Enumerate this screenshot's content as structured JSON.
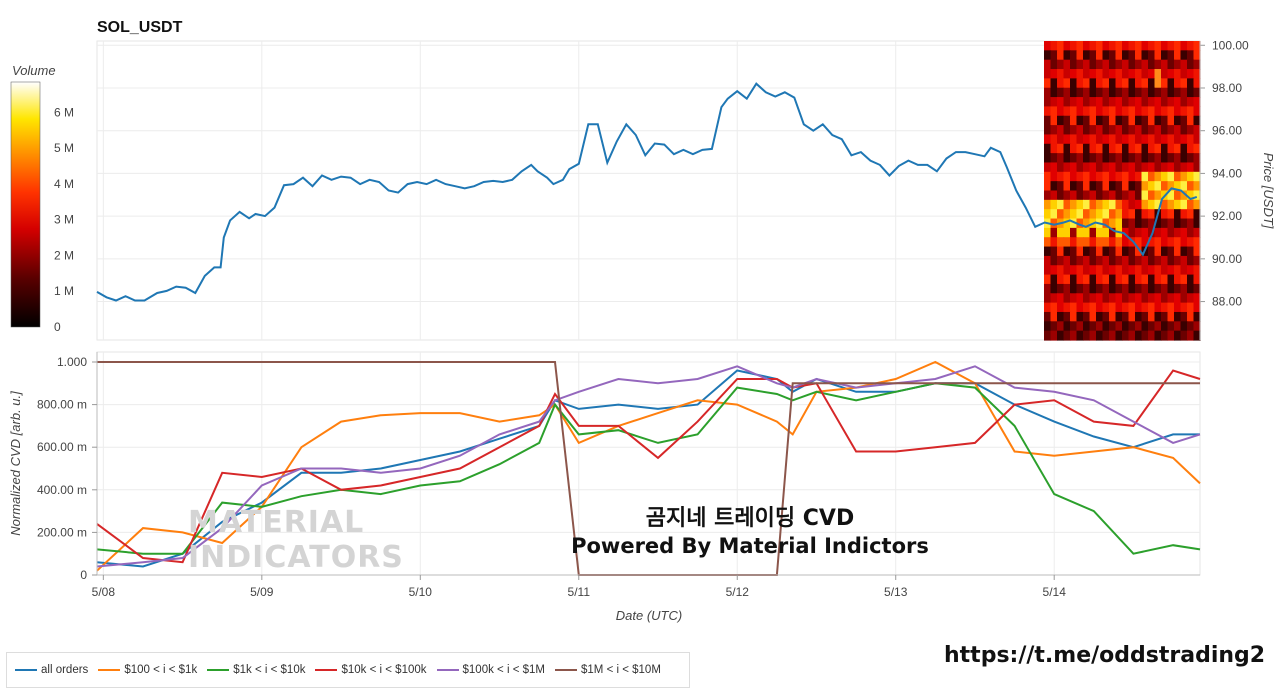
{
  "title": "SOL_USDT",
  "colorbar": {
    "label": "Volume",
    "ticks": [
      "6 M",
      "5 M",
      "4 M",
      "3 M",
      "2 M",
      "1 M",
      "0"
    ]
  },
  "overlay": {
    "line1": "곰지네 트레이딩 CVD",
    "line2": "Powered By Material Indictors",
    "url": "https://t.me/oddstrading2"
  },
  "watermark": {
    "line1": "MATERIAL",
    "line2": "INDICATORS"
  },
  "chart_data": [
    {
      "type": "line",
      "name": "price",
      "ylabel": "Price [USDT]",
      "ylim": [
        86.2,
        100.2
      ],
      "yticks": [
        "100.00",
        "98.00",
        "96.00",
        "94.00",
        "92.00",
        "90.00",
        "88.00"
      ],
      "ytick_values": [
        100,
        98,
        96,
        94,
        92,
        90,
        88
      ],
      "x_range_days": [
        -0.04,
        6.92
      ],
      "x": [
        -0.04,
        0.02,
        0.08,
        0.14,
        0.2,
        0.26,
        0.34,
        0.4,
        0.46,
        0.52,
        0.58,
        0.64,
        0.7,
        0.74,
        0.76,
        0.8,
        0.86,
        0.92,
        0.96,
        1.02,
        1.08,
        1.14,
        1.2,
        1.26,
        1.32,
        1.38,
        1.44,
        1.5,
        1.56,
        1.62,
        1.68,
        1.74,
        1.8,
        1.86,
        1.92,
        1.98,
        2.04,
        2.1,
        2.16,
        2.22,
        2.28,
        2.34,
        2.4,
        2.46,
        2.52,
        2.58,
        2.64,
        2.7,
        2.74,
        2.8,
        2.84,
        2.9,
        2.94,
        3.0,
        3.06,
        3.12,
        3.18,
        3.24,
        3.3,
        3.36,
        3.42,
        3.48,
        3.54,
        3.6,
        3.66,
        3.72,
        3.78,
        3.84,
        3.9,
        3.94,
        4.0,
        4.06,
        4.12,
        4.18,
        4.24,
        4.3,
        4.36,
        4.42,
        4.48,
        4.54,
        4.6,
        4.66,
        4.72,
        4.78,
        4.84,
        4.9,
        4.96,
        5.02,
        5.08,
        5.14,
        5.2,
        5.26,
        5.32,
        5.38,
        5.44,
        5.5,
        5.56,
        5.6,
        5.66,
        5.7,
        5.76,
        5.82,
        5.88,
        5.94,
        6.0,
        6.06,
        6.1,
        6.16,
        6.2,
        6.26,
        6.32,
        6.38,
        6.44,
        6.5,
        6.56,
        6.62,
        6.68,
        6.74,
        6.8,
        6.86,
        6.9
      ],
      "values": [
        88.45,
        88.2,
        88.05,
        88.25,
        88.05,
        88.05,
        88.4,
        88.5,
        88.7,
        88.65,
        88.4,
        89.2,
        89.6,
        89.6,
        91.0,
        91.8,
        92.2,
        91.9,
        92.1,
        92.0,
        92.4,
        93.45,
        93.5,
        93.8,
        93.4,
        93.9,
        93.7,
        93.85,
        93.8,
        93.5,
        93.7,
        93.6,
        93.2,
        93.1,
        93.5,
        93.6,
        93.5,
        93.7,
        93.5,
        93.4,
        93.3,
        93.4,
        93.6,
        93.65,
        93.6,
        93.7,
        94.1,
        94.4,
        94.1,
        93.8,
        93.5,
        93.7,
        94.2,
        94.45,
        96.3,
        96.3,
        94.5,
        95.5,
        96.3,
        95.8,
        94.85,
        95.4,
        95.35,
        94.9,
        95.1,
        94.9,
        95.1,
        95.15,
        97.1,
        97.5,
        97.85,
        97.5,
        98.2,
        97.8,
        97.6,
        97.8,
        97.55,
        96.3,
        96.0,
        96.3,
        95.8,
        95.6,
        94.85,
        95.0,
        94.6,
        94.4,
        93.9,
        94.35,
        94.6,
        94.4,
        94.4,
        94.1,
        94.7,
        95.0,
        95.0,
        94.9,
        94.8,
        95.2,
        95.0,
        94.3,
        93.2,
        92.4,
        91.5,
        91.7,
        91.6,
        91.7,
        91.8,
        91.6,
        91.5,
        91.7,
        91.6,
        91.3,
        91.2,
        90.8,
        90.2,
        91.2,
        92.8,
        93.3,
        93.2,
        92.8,
        92.9
      ]
    },
    {
      "type": "line",
      "name": "cvd",
      "xlabel": "Date (UTC)",
      "ylabel": "Normalized CVD [arb. u.]",
      "ylim": [
        0,
        1
      ],
      "yticks": [
        "1.000",
        "800.00 m",
        "600.00 m",
        "400.00 m",
        "200.00 m",
        "0"
      ],
      "ytick_values": [
        1,
        0.8,
        0.6,
        0.4,
        0.2,
        0
      ],
      "xticks": [
        "5/08",
        "5/09",
        "5/10",
        "5/11",
        "5/12",
        "5/13",
        "5/14"
      ],
      "xtick_values": [
        0,
        1,
        2,
        3,
        4,
        5,
        6
      ],
      "x": [
        -0.04,
        0.25,
        0.5,
        0.75,
        1.0,
        1.25,
        1.5,
        1.75,
        2.0,
        2.25,
        2.5,
        2.75,
        2.85,
        3.0,
        3.25,
        3.5,
        3.75,
        4.0,
        4.25,
        4.35,
        4.5,
        4.75,
        5.0,
        5.25,
        5.5,
        5.75,
        6.0,
        6.25,
        6.5,
        6.75,
        6.92
      ],
      "series": [
        {
          "name": "all orders",
          "color": "#1f77b4",
          "values": [
            0.06,
            0.04,
            0.1,
            0.25,
            0.34,
            0.48,
            0.48,
            0.5,
            0.54,
            0.58,
            0.64,
            0.7,
            0.82,
            0.78,
            0.8,
            0.78,
            0.8,
            0.96,
            0.92,
            0.86,
            0.92,
            0.86,
            0.86,
            0.9,
            0.9,
            0.8,
            0.72,
            0.65,
            0.6,
            0.66,
            0.66
          ]
        },
        {
          "name": "$100 < i < $1k",
          "color": "#ff7f0e",
          "values": [
            0.02,
            0.22,
            0.2,
            0.15,
            0.32,
            0.6,
            0.72,
            0.75,
            0.76,
            0.76,
            0.72,
            0.75,
            0.8,
            0.62,
            0.7,
            0.76,
            0.82,
            0.8,
            0.72,
            0.66,
            0.86,
            0.88,
            0.92,
            1.0,
            0.9,
            0.58,
            0.56,
            0.58,
            0.6,
            0.55,
            0.43
          ]
        },
        {
          "name": "$1k < i < $10k",
          "color": "#2ca02c",
          "values": [
            0.12,
            0.1,
            0.1,
            0.34,
            0.32,
            0.37,
            0.4,
            0.38,
            0.42,
            0.44,
            0.52,
            0.62,
            0.8,
            0.66,
            0.68,
            0.62,
            0.66,
            0.88,
            0.85,
            0.82,
            0.86,
            0.82,
            0.86,
            0.9,
            0.88,
            0.7,
            0.38,
            0.3,
            0.1,
            0.14,
            0.12
          ]
        },
        {
          "name": "$10k < i < $100k",
          "color": "#d62728",
          "values": [
            0.24,
            0.08,
            0.06,
            0.48,
            0.46,
            0.5,
            0.4,
            0.42,
            0.46,
            0.5,
            0.6,
            0.7,
            0.85,
            0.7,
            0.7,
            0.55,
            0.72,
            0.92,
            0.92,
            0.88,
            0.9,
            0.58,
            0.58,
            0.6,
            0.62,
            0.8,
            0.82,
            0.72,
            0.7,
            0.96,
            0.92
          ]
        },
        {
          "name": "$100k < i < $1M",
          "color": "#9467bd",
          "values": [
            0.04,
            0.06,
            0.08,
            0.22,
            0.42,
            0.5,
            0.5,
            0.48,
            0.5,
            0.56,
            0.66,
            0.72,
            0.82,
            0.86,
            0.92,
            0.9,
            0.92,
            0.98,
            0.9,
            0.88,
            0.92,
            0.88,
            0.9,
            0.92,
            0.98,
            0.88,
            0.86,
            0.82,
            0.72,
            0.62,
            0.66
          ]
        },
        {
          "name": "$1M < i < $10M",
          "color": "#8c564b",
          "values": [
            1.0,
            1.0,
            1.0,
            1.0,
            1.0,
            1.0,
            1.0,
            1.0,
            1.0,
            1.0,
            1.0,
            1.0,
            1.0,
            0.0,
            0.0,
            0.0,
            0.0,
            0.0,
            0.0,
            0.9,
            0.9,
            0.9,
            0.9,
            0.9,
            0.9,
            0.9,
            0.9,
            0.9,
            0.9,
            0.9,
            0.9
          ]
        }
      ]
    }
  ]
}
